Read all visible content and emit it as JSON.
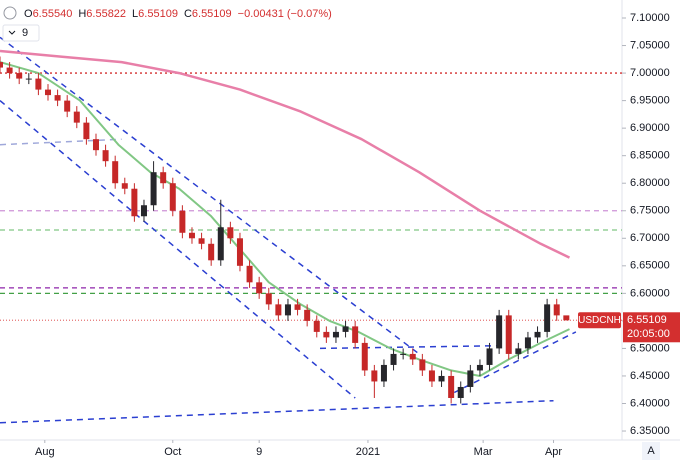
{
  "chart_data": {
    "type": "candlestick",
    "quote": [
      {
        "k": "O",
        "v": "6.55540"
      },
      {
        "k": "H",
        "v": "6.55822"
      },
      {
        "k": "L",
        "v": "6.55109"
      },
      {
        "k": "C",
        "v": "6.55109"
      },
      {
        "v": "−0.00431 (−0.07%)"
      }
    ],
    "indicator_count": 9,
    "symbol": "USDCNH",
    "last_price": 6.55109,
    "countdown": "20:05:00",
    "scale_mode": "A",
    "up_color": "#26262b",
    "down_color": "#c62828",
    "grid": false,
    "xlim": [
      0,
      194.4
    ],
    "ylim": [
      6.3337,
      7.1327
    ],
    "xticks": [
      {
        "value": 14,
        "label": "Aug"
      },
      {
        "value": 54,
        "label": "Oct"
      },
      {
        "value": 81,
        "label": "9"
      },
      {
        "value": 115,
        "label": "2021"
      },
      {
        "value": 151,
        "label": "Mar"
      },
      {
        "value": 173,
        "label": "Apr"
      }
    ],
    "yticks": [
      {
        "value": 6.35,
        "label": "6.35000"
      },
      {
        "value": 6.4,
        "label": "6.40000"
      },
      {
        "value": 6.45,
        "label": "6.45000"
      },
      {
        "value": 6.5,
        "label": "6.50000"
      },
      {
        "value": 6.55,
        "label": "6.55000"
      },
      {
        "value": 6.6,
        "label": "6.60000"
      },
      {
        "value": 6.65,
        "label": "6.65000"
      },
      {
        "value": 6.7,
        "label": "6.70000"
      },
      {
        "value": 6.75,
        "label": "6.75000"
      },
      {
        "value": 6.8,
        "label": "6.80000"
      },
      {
        "value": 6.85,
        "label": "6.85000"
      },
      {
        "value": 6.9,
        "label": "6.90000"
      },
      {
        "value": 6.95,
        "label": "6.95000"
      },
      {
        "value": 7,
        "label": "7.00000"
      },
      {
        "value": 7.05,
        "label": "7.05000"
      },
      {
        "value": 7.1,
        "label": "7.10000"
      }
    ],
    "x": [
      0,
      3,
      6,
      9,
      12,
      15,
      18,
      21,
      24,
      27,
      30,
      33,
      36,
      39,
      42,
      45,
      48,
      51,
      54,
      57,
      60,
      63,
      66,
      69,
      72,
      75,
      78,
      81,
      84,
      87,
      90,
      93,
      96,
      99,
      102,
      105,
      108,
      111,
      114,
      117,
      120,
      123,
      126,
      129,
      132,
      135,
      138,
      141,
      144,
      147,
      150,
      153,
      156,
      159,
      162,
      165,
      168,
      171,
      174,
      177
    ],
    "open": [
      7.02,
      7.01,
      7.0,
      6.99,
      6.99,
      6.97,
      6.96,
      6.95,
      6.93,
      6.91,
      6.88,
      6.86,
      6.84,
      6.8,
      6.79,
      6.74,
      6.76,
      6.82,
      6.8,
      6.75,
      6.71,
      6.7,
      6.69,
      6.66,
      6.72,
      6.7,
      6.65,
      6.62,
      6.6,
      6.58,
      6.56,
      6.58,
      6.57,
      6.55,
      6.53,
      6.52,
      6.53,
      6.54,
      6.51,
      6.46,
      6.44,
      6.47,
      6.49,
      6.49,
      6.48,
      6.46,
      6.44,
      6.45,
      6.41,
      6.43,
      6.46,
      6.47,
      6.5,
      6.56,
      6.49,
      6.5,
      6.52,
      6.53,
      6.58,
      6.56
    ],
    "high": [
      7.03,
      7.02,
      7.01,
      7.0,
      7.0,
      6.98,
      6.97,
      6.96,
      6.94,
      6.92,
      6.89,
      6.87,
      6.85,
      6.81,
      6.8,
      6.77,
      6.84,
      6.83,
      6.81,
      6.76,
      6.72,
      6.71,
      6.7,
      6.77,
      6.73,
      6.71,
      6.66,
      6.63,
      6.61,
      6.59,
      6.59,
      6.59,
      6.58,
      6.56,
      6.54,
      6.54,
      6.55,
      6.55,
      6.52,
      6.47,
      6.48,
      6.5,
      6.5,
      6.5,
      6.49,
      6.47,
      6.46,
      6.46,
      6.44,
      6.47,
      6.48,
      6.51,
      6.57,
      6.57,
      6.51,
      6.53,
      6.54,
      6.59,
      6.59,
      6.558
    ],
    "low": [
      7.0,
      6.99,
      6.98,
      6.98,
      6.96,
      6.95,
      6.94,
      6.92,
      6.9,
      6.87,
      6.85,
      6.83,
      6.79,
      6.78,
      6.73,
      6.73,
      6.75,
      6.79,
      6.74,
      6.7,
      6.69,
      6.68,
      6.65,
      6.65,
      6.69,
      6.64,
      6.61,
      6.59,
      6.57,
      6.55,
      6.55,
      6.56,
      6.54,
      6.52,
      6.51,
      6.51,
      6.52,
      6.5,
      6.45,
      6.41,
      6.43,
      6.46,
      6.48,
      6.47,
      6.45,
      6.43,
      6.43,
      6.4,
      6.4,
      6.42,
      6.45,
      6.46,
      6.49,
      6.48,
      6.48,
      6.49,
      6.51,
      6.52,
      6.55,
      6.551
    ],
    "close": [
      7.01,
      7.0,
      6.99,
      6.99,
      6.97,
      6.96,
      6.95,
      6.93,
      6.91,
      6.88,
      6.86,
      6.84,
      6.8,
      6.79,
      6.74,
      6.76,
      6.82,
      6.8,
      6.75,
      6.71,
      6.7,
      6.69,
      6.66,
      6.72,
      6.7,
      6.65,
      6.62,
      6.6,
      6.58,
      6.56,
      6.58,
      6.57,
      6.55,
      6.53,
      6.52,
      6.53,
      6.54,
      6.51,
      6.46,
      6.44,
      6.47,
      6.49,
      6.49,
      6.48,
      6.46,
      6.44,
      6.45,
      6.41,
      6.43,
      6.46,
      6.47,
      6.5,
      6.56,
      6.49,
      6.5,
      6.52,
      6.53,
      6.58,
      6.56,
      6.551
    ],
    "series": [
      {
        "color": "#e87fa8",
        "width": 2.5,
        "x": [
          0,
          19,
          38,
          56,
          75,
          94,
          113,
          131,
          150,
          169,
          178
        ],
        "values": [
          7.04,
          7.03,
          7.02,
          7.0,
          6.97,
          6.93,
          6.88,
          6.82,
          6.75,
          6.69,
          6.665
        ]
      },
      {
        "color": "#81c784",
        "width": 2,
        "x": [
          0,
          12,
          25,
          37,
          47,
          56,
          66,
          75,
          84,
          94,
          103,
          112,
          122,
          131,
          141,
          150,
          159,
          169,
          178
        ],
        "values": [
          7.02,
          7.0,
          6.95,
          6.87,
          6.82,
          6.79,
          6.74,
          6.68,
          6.62,
          6.58,
          6.55,
          6.53,
          6.5,
          6.48,
          6.46,
          6.45,
          6.48,
          6.51,
          6.535
        ]
      }
    ],
    "levels": [
      {
        "value": 7.0,
        "color": "#d32f2f",
        "dash": "2,3"
      },
      {
        "value": 6.75,
        "color": "#ce93d8",
        "dash": "5,4"
      },
      {
        "value": 6.715,
        "color": "#81c784",
        "dash": "5,4"
      },
      {
        "value": 6.61,
        "color": "#8e24aa",
        "dash": "5,4"
      },
      {
        "value": 6.6,
        "color": "#43a047",
        "dash": "5,4"
      },
      {
        "value": 6.55109,
        "color": "#e57373",
        "dash": "1,2"
      }
    ],
    "trendlines": [
      {
        "color": "#2b3fd1",
        "x": [
          0,
          131
        ],
        "values": [
          7.065,
          6.49
        ]
      },
      {
        "color": "#2b3fd1",
        "x": [
          0,
          111
        ],
        "values": [
          6.95,
          6.41
        ]
      },
      {
        "color": "#2b3fd1",
        "x": [
          100,
          156
        ],
        "values": [
          6.5,
          6.505
        ]
      },
      {
        "color": "#2b3fd1",
        "x": [
          0,
          173
        ],
        "values": [
          6.365,
          6.405
        ]
      },
      {
        "color": "#2b3fd1",
        "x": [
          142,
          180
        ],
        "values": [
          6.42,
          6.53
        ]
      },
      {
        "color": "#9fa8da",
        "x": [
          0,
          38
        ],
        "values": [
          6.87,
          6.88
        ]
      }
    ]
  }
}
